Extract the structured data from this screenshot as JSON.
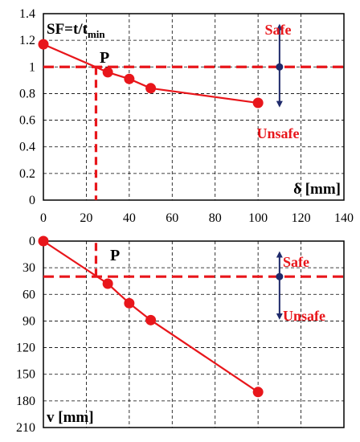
{
  "colors": {
    "series": "#e8161b",
    "arrow": "#1f2a6b",
    "grid": "#000000"
  },
  "chart_data": [
    {
      "type": "line",
      "x": [
        0,
        30,
        40,
        50,
        100
      ],
      "y": [
        1.17,
        0.96,
        0.91,
        0.84,
        0.73
      ],
      "xlim": [
        0,
        140
      ],
      "ylim": [
        0,
        1.4
      ],
      "x_ticks": [
        "0",
        "20",
        "40",
        "60",
        "80",
        "100",
        "120",
        "140"
      ],
      "y_ticks": [
        "0",
        "0.2",
        "0.4",
        "0.6",
        "0.8",
        "1",
        "1.2",
        "1.4"
      ],
      "ylabel_main": "SF=t/t",
      "ylabel_sub": "min",
      "xlabel": "δ [mm]",
      "threshold_y": 1,
      "point_label": "P",
      "point": {
        "x": 24.5,
        "y": 1
      },
      "safe_label": "Safe",
      "unsafe_label": "Unsafe",
      "indicator_x": 110,
      "indicator_range": [
        0.72,
        1.3
      ],
      "grid": "dashed"
    },
    {
      "type": "line",
      "x": [
        0,
        30,
        40,
        50,
        100
      ],
      "y": [
        0,
        48,
        70,
        89,
        170
      ],
      "xlim": [
        0,
        140
      ],
      "ylim": [
        0,
        210
      ],
      "y_inverted": true,
      "y_ticks": [
        "0",
        "30",
        "60",
        "90",
        "120",
        "150",
        "180",
        "210"
      ],
      "ylabel": "v [mm]",
      "threshold_y": 40,
      "point_label": "P",
      "point": {
        "x": 24.5,
        "y": 40
      },
      "safe_label": "Safe",
      "unsafe_label": "Unsafe",
      "indicator_x": 110,
      "indicator_range": [
        15,
        85
      ],
      "grid": "dashed"
    }
  ]
}
